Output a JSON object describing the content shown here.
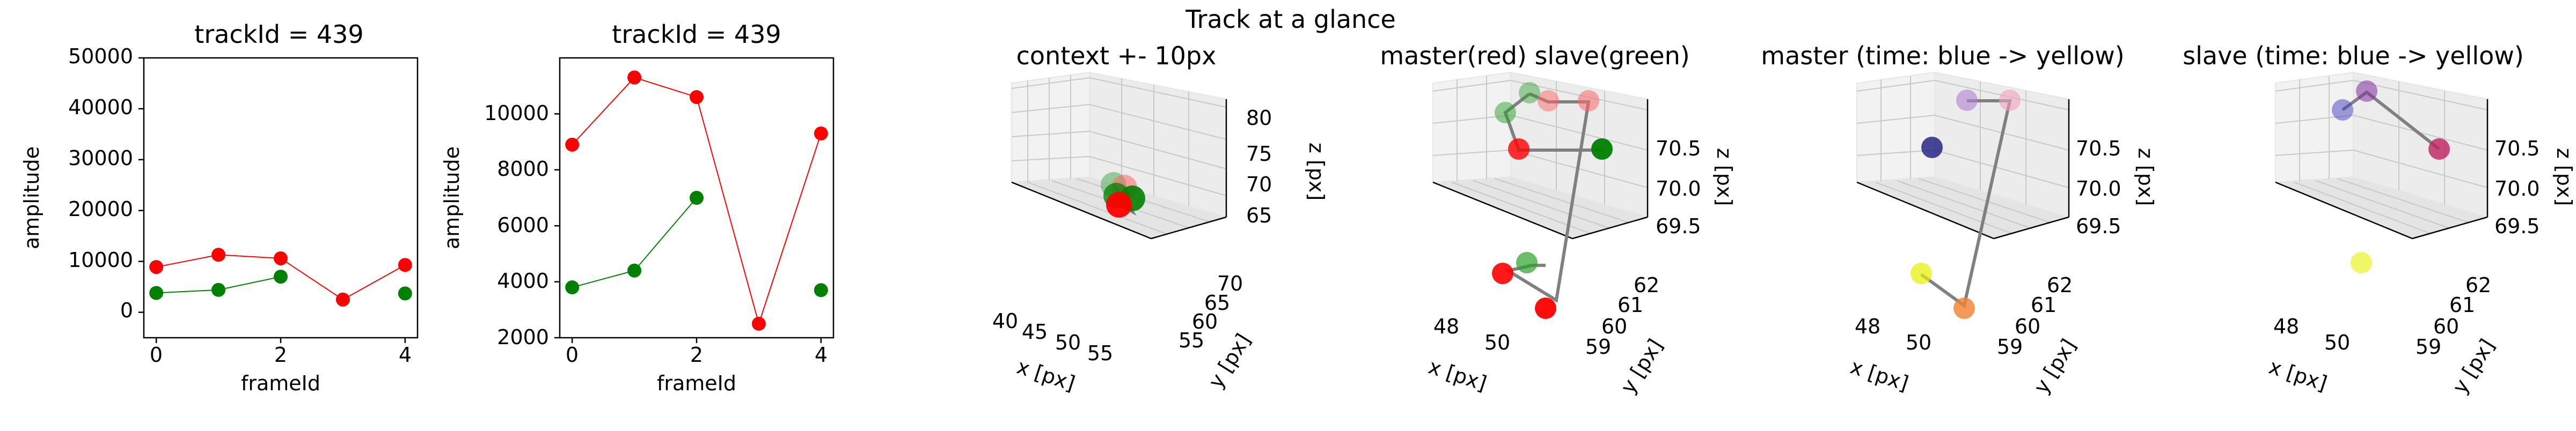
{
  "figure": {
    "suptitle": "Track at a glance"
  },
  "chart_data": [
    {
      "type": "line",
      "title": "trackId = 439",
      "xlabel": "frameId",
      "ylabel": "amplitude",
      "xlim": [
        -0.2,
        4.2
      ],
      "ylim": [
        -5000,
        50000
      ],
      "xticks": [
        "0",
        "2",
        "4"
      ],
      "yticks": [
        "0",
        "10000",
        "20000",
        "30000",
        "40000",
        "50000"
      ],
      "series": [
        {
          "color": "#ff0000",
          "points": [
            [
              0,
              8900
            ],
            [
              1,
              11300
            ],
            [
              2,
              10600
            ],
            [
              3,
              2500
            ],
            [
              4,
              9300
            ]
          ],
          "segments": [
            [
              0,
              1,
              2,
              3,
              4
            ]
          ]
        },
        {
          "color": "#008000",
          "points": [
            [
              0,
              3800
            ],
            [
              1,
              4400
            ],
            [
              2,
              7000
            ],
            [
              4,
              3700
            ]
          ],
          "segments": [
            [
              0,
              1,
              2
            ]
          ]
        }
      ]
    },
    {
      "type": "line",
      "title": "trackId = 439",
      "xlabel": "frameId",
      "ylabel": "amplitude",
      "xlim": [
        -0.2,
        4.2
      ],
      "ylim": [
        2000,
        12000
      ],
      "xticks": [
        "0",
        "2",
        "4"
      ],
      "yticks": [
        "2000",
        "4000",
        "6000",
        "8000",
        "10000"
      ],
      "series": [
        {
          "color": "#ff0000",
          "points": [
            [
              0,
              8900
            ],
            [
              1,
              11300
            ],
            [
              2,
              10600
            ],
            [
              3,
              2500
            ],
            [
              4,
              9300
            ]
          ],
          "segments": [
            [
              0,
              1,
              2,
              3,
              4
            ]
          ]
        },
        {
          "color": "#008000",
          "points": [
            [
              0,
              3800
            ],
            [
              1,
              4400
            ],
            [
              2,
              7000
            ],
            [
              4,
              3700
            ]
          ],
          "segments": [
            [
              0,
              1,
              2
            ]
          ]
        }
      ]
    },
    {
      "type": "scatter3d",
      "title": "context +- 10px",
      "xlabel": "x [px]",
      "ylabel": "y [px]",
      "zlabel": "z [px]",
      "xlim": [
        38,
        58
      ],
      "ylim": [
        52,
        72
      ],
      "zlim": [
        60,
        81
      ],
      "xticks": [
        "40",
        "45",
        "50",
        "55"
      ],
      "yticks": [
        "55",
        "60",
        "65",
        "70"
      ],
      "zticks": [
        "65",
        "70",
        "75",
        "80"
      ]
    },
    {
      "type": "scatter3d",
      "title": "master(red) slave(green)",
      "xlabel": "x [px]",
      "ylabel": "y [px]",
      "zlabel": "z [px]",
      "xlim": [
        47,
        52
      ],
      "ylim": [
        58.5,
        62.5
      ],
      "zlim": [
        69.2,
        70.8
      ],
      "xticks": [
        "48",
        "50"
      ],
      "yticks": [
        "59",
        "60",
        "61",
        "62"
      ],
      "zticks": [
        "69.5",
        "70.0",
        "70.5"
      ]
    },
    {
      "type": "scatter3d",
      "title": "master (time: blue -> yellow)",
      "xlabel": "x [px]",
      "ylabel": "y [px]",
      "zlabel": "z [px]",
      "xlim": [
        47,
        52
      ],
      "ylim": [
        58.5,
        62.5
      ],
      "zlim": [
        69.2,
        70.8
      ],
      "xticks": [
        "48",
        "50"
      ],
      "yticks": [
        "59",
        "60",
        "61",
        "62"
      ],
      "zticks": [
        "69.5",
        "70.0",
        "70.5"
      ]
    },
    {
      "type": "scatter3d",
      "title": "slave (time: blue -> yellow)",
      "xlabel": "x [px]",
      "ylabel": "y [px]",
      "zlabel": "z [px]",
      "xlim": [
        47,
        52
      ],
      "ylim": [
        58.5,
        62.5
      ],
      "zlim": [
        69.2,
        70.8
      ],
      "xticks": [
        "48",
        "50"
      ],
      "yticks": [
        "59",
        "60",
        "61",
        "62"
      ],
      "zticks": [
        "69.5",
        "70.0",
        "70.5"
      ]
    }
  ]
}
